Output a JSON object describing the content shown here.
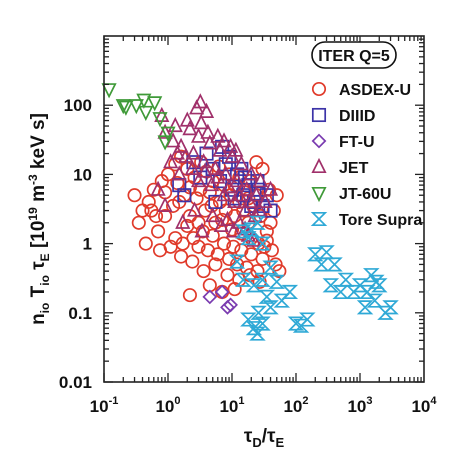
{
  "chart_data": {
    "type": "scatter",
    "xscale": "log",
    "yscale": "log",
    "xlim": [
      0.1,
      10000
    ],
    "ylim": [
      0.01,
      1000
    ],
    "xticks": [
      0.1,
      1,
      10,
      100,
      1000,
      10000
    ],
    "yticks": [
      0.01,
      0.1,
      1,
      10,
      100
    ],
    "ytick_labels": [
      "0.01",
      "0.1",
      "1",
      "10",
      "100"
    ],
    "xlabel": "τD/τE",
    "ylabel": "nio Tio τE [10^19 m^-3 keV s]",
    "legend": {
      "title": "ITER Q=5",
      "placement": "top-right"
    },
    "series": [
      {
        "name": "ASDEX-U",
        "marker": "circle",
        "color": "#e03a2a",
        "points": [
          [
            1.2,
            3.5
          ],
          [
            1.5,
            4.0
          ],
          [
            1.8,
            5.0
          ],
          [
            2.2,
            2.5
          ],
          [
            2.8,
            4.5
          ],
          [
            3.2,
            6.0
          ],
          [
            3.8,
            3.0
          ],
          [
            4.5,
            5.5
          ],
          [
            5.5,
            2.0
          ],
          [
            6.5,
            4.0
          ],
          [
            8,
            3.0
          ],
          [
            9.5,
            5.0
          ],
          [
            11,
            2.5
          ],
          [
            13,
            4.0
          ],
          [
            15,
            3.0
          ],
          [
            18,
            2.0
          ],
          [
            22,
            3.5
          ],
          [
            28,
            2.5
          ],
          [
            35,
            1.5
          ],
          [
            40,
            2.0
          ],
          [
            0.35,
            2.0
          ],
          [
            0.45,
            1.0
          ],
          [
            0.55,
            3.0
          ],
          [
            0.7,
            1.5
          ],
          [
            0.9,
            2.5
          ],
          [
            1.1,
            0.9
          ],
          [
            1.3,
            1.2
          ],
          [
            1.7,
            1.0
          ],
          [
            2.0,
            1.8
          ],
          [
            2.5,
            1.2
          ],
          [
            3.0,
            0.9
          ],
          [
            3.5,
            1.5
          ],
          [
            4.2,
            0.8
          ],
          [
            5.0,
            1.3
          ],
          [
            6.0,
            0.7
          ],
          [
            7.5,
            1.0
          ],
          [
            9,
            0.6
          ],
          [
            10.5,
            0.9
          ],
          [
            12,
            0.5
          ],
          [
            14,
            0.8
          ],
          [
            17,
            0.45
          ],
          [
            20,
            0.7
          ],
          [
            25,
            0.4
          ],
          [
            30,
            0.6
          ],
          [
            35,
            1.1
          ],
          [
            42,
            0.8
          ],
          [
            48,
            0.5
          ],
          [
            55,
            0.4
          ],
          [
            0.6,
            6.0
          ],
          [
            0.8,
            8.0
          ],
          [
            1.0,
            10
          ],
          [
            1.3,
            14
          ],
          [
            1.6,
            18
          ],
          [
            2.0,
            12
          ],
          [
            2.6,
            9
          ],
          [
            3.3,
            15
          ],
          [
            4.0,
            11
          ],
          [
            5.0,
            8
          ],
          [
            6.2,
            13
          ],
          [
            7.5,
            7
          ],
          [
            9,
            10
          ],
          [
            11,
            7
          ],
          [
            13,
            9
          ],
          [
            16,
            6
          ],
          [
            19,
            8
          ],
          [
            24,
            5
          ],
          [
            0.5,
            4.0
          ],
          [
            0.4,
            3.0
          ],
          [
            0.3,
            5.0
          ],
          [
            0.65,
            2.5
          ],
          [
            1.6,
            0.65
          ],
          [
            2.4,
            0.55
          ],
          [
            3.6,
            0.4
          ],
          [
            5.5,
            0.5
          ],
          [
            8.5,
            0.35
          ],
          [
            13,
            0.3
          ],
          [
            19,
            0.35
          ],
          [
            27,
            0.28
          ],
          [
            2.2,
            0.18
          ],
          [
            7.0,
            0.2
          ],
          [
            4.5,
            0.25
          ],
          [
            11,
            0.22
          ],
          [
            0.9,
            5.5
          ],
          [
            1.4,
            7.5
          ],
          [
            2.2,
            6.5
          ],
          [
            3.0,
            2.0
          ],
          [
            4.8,
            3.5
          ],
          [
            7.0,
            2.2
          ],
          [
            10,
            1.6
          ],
          [
            14,
            1.4
          ],
          [
            20,
            1.2
          ],
          [
            26,
            1.0
          ],
          [
            32,
            0.9
          ],
          [
            45,
            3.0
          ],
          [
            50,
            5.0
          ],
          [
            38,
            6.0
          ],
          [
            30,
            12
          ],
          [
            24,
            15
          ],
          [
            18,
            4.5
          ],
          [
            0.75,
            0.8
          ]
        ]
      },
      {
        "name": "DIIID",
        "marker": "square",
        "color": "#3c33a8",
        "points": [
          [
            2.5,
            15
          ],
          [
            3.2,
            9
          ],
          [
            4.0,
            20
          ],
          [
            5.0,
            12
          ],
          [
            6.5,
            8
          ],
          [
            8,
            14
          ],
          [
            10,
            6
          ],
          [
            12,
            10
          ],
          [
            15,
            5
          ],
          [
            18,
            7
          ],
          [
            22,
            4
          ],
          [
            26,
            6
          ],
          [
            30,
            3.5
          ],
          [
            35,
            5
          ],
          [
            40,
            3
          ],
          [
            20,
            3.5
          ],
          [
            14,
            12
          ],
          [
            9,
            18
          ],
          [
            7,
            25
          ],
          [
            11,
            4.5
          ],
          [
            16,
            9
          ],
          [
            25,
            8
          ],
          [
            1.5,
            7
          ],
          [
            1.8,
            5
          ],
          [
            5.5,
            4
          ]
        ]
      },
      {
        "name": "FT-U",
        "marker": "diamond",
        "color": "#7a3bb0",
        "points": [
          [
            4.5,
            0.17
          ],
          [
            8.5,
            0.12
          ],
          [
            9.5,
            0.13
          ],
          [
            7.0,
            0.2
          ]
        ]
      },
      {
        "name": "JET",
        "marker": "triangle-up",
        "color": "#a0306a",
        "points": [
          [
            0.9,
            40
          ],
          [
            1.2,
            30
          ],
          [
            1.6,
            25
          ],
          [
            2.0,
            60
          ],
          [
            2.5,
            20
          ],
          [
            3.0,
            35
          ],
          [
            3.6,
            15
          ],
          [
            4.5,
            28
          ],
          [
            5.5,
            12
          ],
          [
            6.5,
            22
          ],
          [
            8,
            10
          ],
          [
            10,
            18
          ],
          [
            12,
            8
          ],
          [
            14,
            14
          ],
          [
            17,
            6
          ],
          [
            20,
            10
          ],
          [
            24,
            5
          ],
          [
            28,
            8
          ],
          [
            33,
            4
          ],
          [
            40,
            6
          ],
          [
            1.1,
            15
          ],
          [
            1.5,
            10
          ],
          [
            1.9,
            18
          ],
          [
            2.4,
            12
          ],
          [
            3.0,
            8
          ],
          [
            3.8,
            11
          ],
          [
            4.8,
            7
          ],
          [
            6,
            9
          ],
          [
            7.5,
            5
          ],
          [
            9,
            6.5
          ],
          [
            11,
            4
          ],
          [
            13,
            5
          ],
          [
            16,
            3
          ],
          [
            19,
            4
          ],
          [
            23,
            2.5
          ],
          [
            27,
            3
          ],
          [
            0.8,
            70
          ],
          [
            1.3,
            50
          ],
          [
            2.2,
            45
          ],
          [
            3.3,
            55
          ],
          [
            4.2,
            40
          ],
          [
            6,
            35
          ],
          [
            7.5,
            30
          ],
          [
            9.5,
            25
          ],
          [
            11.5,
            22
          ],
          [
            1.7,
            2.0
          ],
          [
            2.6,
            3.0
          ],
          [
            3.4,
            1.5
          ],
          [
            5,
            2.5
          ],
          [
            6.8,
            1.8
          ],
          [
            8.5,
            2.2
          ],
          [
            10.5,
            1.5
          ],
          [
            13,
            2.0
          ],
          [
            16,
            1.6
          ],
          [
            0.9,
            3.5
          ],
          [
            0.7,
            6
          ],
          [
            1.4,
            20
          ],
          [
            2.8,
            90
          ],
          [
            3.2,
            110
          ],
          [
            4.0,
            80
          ],
          [
            18,
            1.3
          ],
          [
            22,
            1.1
          ]
        ]
      },
      {
        "name": "JT-60U",
        "marker": "triangle-down",
        "color": "#3f9a38",
        "points": [
          [
            0.12,
            170
          ],
          [
            0.2,
            100
          ],
          [
            0.22,
            95
          ],
          [
            0.32,
            100
          ],
          [
            0.42,
            120
          ],
          [
            0.62,
            110
          ],
          [
            0.45,
            80
          ],
          [
            0.75,
            65
          ],
          [
            1.0,
            40
          ],
          [
            0.9,
            30
          ]
        ]
      },
      {
        "name": "Tore Supra",
        "marker": "hourglass",
        "color": "#2fa9d6",
        "points": [
          [
            12,
            0.55
          ],
          [
            15,
            0.3
          ],
          [
            18,
            0.08
          ],
          [
            22,
            0.06
          ],
          [
            26,
            0.1
          ],
          [
            30,
            0.07
          ],
          [
            35,
            0.17
          ],
          [
            40,
            0.12
          ],
          [
            50,
            0.28
          ],
          [
            60,
            0.15
          ],
          [
            80,
            0.2
          ],
          [
            100,
            0.07
          ],
          [
            120,
            0.065
          ],
          [
            150,
            0.08
          ],
          [
            200,
            0.7
          ],
          [
            250,
            0.5
          ],
          [
            300,
            0.75
          ],
          [
            350,
            0.25
          ],
          [
            400,
            0.5
          ],
          [
            500,
            0.2
          ],
          [
            600,
            0.3
          ],
          [
            800,
            0.2
          ],
          [
            1000,
            0.25
          ],
          [
            1200,
            0.12
          ],
          [
            1300,
            0.2
          ],
          [
            1500,
            0.35
          ],
          [
            1700,
            0.15
          ],
          [
            1800,
            0.28
          ],
          [
            2000,
            0.25
          ],
          [
            2500,
            0.1
          ],
          [
            3000,
            0.12
          ],
          [
            25,
            0.05
          ],
          [
            30,
            0.3
          ],
          [
            15,
            1.5
          ],
          [
            20,
            1.6
          ],
          [
            25,
            2.0
          ],
          [
            30,
            1.0
          ],
          [
            18,
            1.2
          ],
          [
            40,
            0.45
          ],
          [
            22,
            0.25
          ]
        ]
      }
    ]
  }
}
